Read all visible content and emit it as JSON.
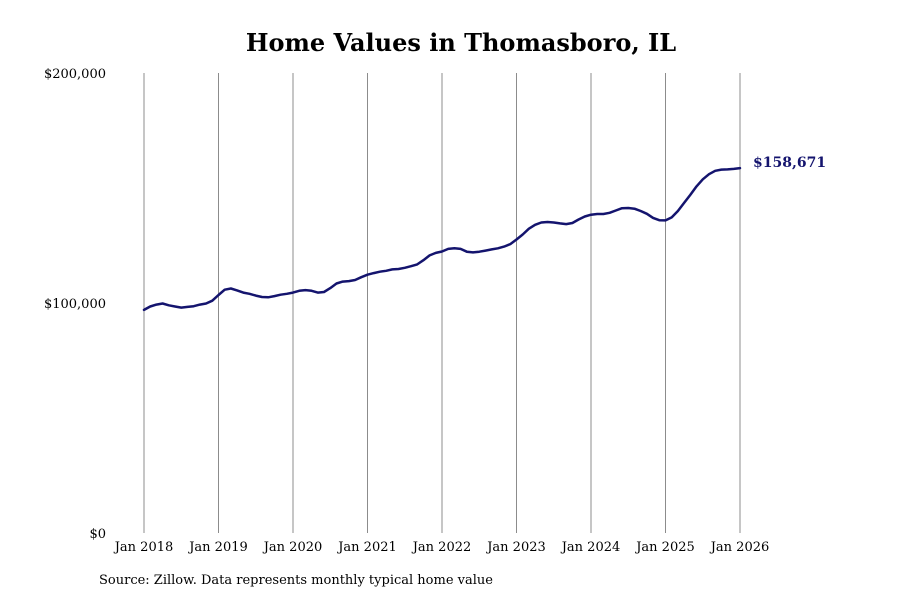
{
  "chart_data": {
    "type": "line",
    "title": "Home Values in Thomasboro, IL",
    "xlabel": "",
    "ylabel": "",
    "ylim": [
      0,
      200000
    ],
    "y_ticks": [
      {
        "value": 0,
        "label": "$0"
      },
      {
        "value": 100000,
        "label": "$100,000"
      },
      {
        "value": 200000,
        "label": "$200,000"
      }
    ],
    "x_ticks": [
      {
        "date": "2018-01",
        "label": "Jan 2018"
      },
      {
        "date": "2019-01",
        "label": "Jan 2019"
      },
      {
        "date": "2020-01",
        "label": "Jan 2020"
      },
      {
        "date": "2021-01",
        "label": "Jan 2021"
      },
      {
        "date": "2022-01",
        "label": "Jan 2022"
      },
      {
        "date": "2023-01",
        "label": "Jan 2023"
      },
      {
        "date": "2024-01",
        "label": "Jan 2024"
      },
      {
        "date": "2025-01",
        "label": "Jan 2025"
      },
      {
        "date": "2026-01",
        "label": "Jan 2026"
      }
    ],
    "grid": "vertical",
    "line_color": "#14146e",
    "series": [
      {
        "name": "",
        "points": [
          [
            "2018-01",
            97000
          ],
          [
            "2018-02",
            98500
          ],
          [
            "2018-03",
            99300
          ],
          [
            "2018-04",
            99800
          ],
          [
            "2018-05",
            99000
          ],
          [
            "2018-06",
            98500
          ],
          [
            "2018-07",
            98000
          ],
          [
            "2018-08",
            98300
          ],
          [
            "2018-09",
            98600
          ],
          [
            "2018-10",
            99300
          ],
          [
            "2018-11",
            99800
          ],
          [
            "2018-12",
            101000
          ],
          [
            "2019-01",
            103500
          ],
          [
            "2019-02",
            105800
          ],
          [
            "2019-03",
            106300
          ],
          [
            "2019-04",
            105500
          ],
          [
            "2019-05",
            104500
          ],
          [
            "2019-06",
            104000
          ],
          [
            "2019-07",
            103200
          ],
          [
            "2019-08",
            102600
          ],
          [
            "2019-09",
            102500
          ],
          [
            "2019-10",
            103000
          ],
          [
            "2019-11",
            103600
          ],
          [
            "2019-12",
            104000
          ],
          [
            "2020-01",
            104500
          ],
          [
            "2020-02",
            105300
          ],
          [
            "2020-03",
            105600
          ],
          [
            "2020-04",
            105300
          ],
          [
            "2020-05",
            104500
          ],
          [
            "2020-06",
            104800
          ],
          [
            "2020-07",
            106500
          ],
          [
            "2020-08",
            108500
          ],
          [
            "2020-09",
            109300
          ],
          [
            "2020-10",
            109500
          ],
          [
            "2020-11",
            110000
          ],
          [
            "2020-12",
            111200
          ],
          [
            "2021-01",
            112300
          ],
          [
            "2021-02",
            113000
          ],
          [
            "2021-03",
            113600
          ],
          [
            "2021-04",
            114000
          ],
          [
            "2021-05",
            114600
          ],
          [
            "2021-06",
            114800
          ],
          [
            "2021-07",
            115300
          ],
          [
            "2021-08",
            116000
          ],
          [
            "2021-09",
            116800
          ],
          [
            "2021-10",
            118600
          ],
          [
            "2021-11",
            120700
          ],
          [
            "2021-12",
            121800
          ],
          [
            "2022-01",
            122400
          ],
          [
            "2022-02",
            123500
          ],
          [
            "2022-03",
            123800
          ],
          [
            "2022-04",
            123500
          ],
          [
            "2022-05",
            122300
          ],
          [
            "2022-06",
            122000
          ],
          [
            "2022-07",
            122300
          ],
          [
            "2022-08",
            122800
          ],
          [
            "2022-09",
            123300
          ],
          [
            "2022-10",
            123800
          ],
          [
            "2022-11",
            124500
          ],
          [
            "2022-12",
            125600
          ],
          [
            "2023-01",
            127600
          ],
          [
            "2023-02",
            129800
          ],
          [
            "2023-03",
            132300
          ],
          [
            "2023-04",
            134000
          ],
          [
            "2023-05",
            135000
          ],
          [
            "2023-06",
            135200
          ],
          [
            "2023-07",
            135000
          ],
          [
            "2023-08",
            134600
          ],
          [
            "2023-09",
            134300
          ],
          [
            "2023-10",
            134800
          ],
          [
            "2023-11",
            136300
          ],
          [
            "2023-12",
            137600
          ],
          [
            "2024-01",
            138400
          ],
          [
            "2024-02",
            138700
          ],
          [
            "2024-03",
            138700
          ],
          [
            "2024-04",
            139200
          ],
          [
            "2024-05",
            140200
          ],
          [
            "2024-06",
            141200
          ],
          [
            "2024-07",
            141300
          ],
          [
            "2024-08",
            141000
          ],
          [
            "2024-09",
            140000
          ],
          [
            "2024-10",
            138800
          ],
          [
            "2024-11",
            137000
          ],
          [
            "2024-12",
            136000
          ],
          [
            "2025-01",
            135900
          ],
          [
            "2025-02",
            137200
          ],
          [
            "2025-03",
            140000
          ],
          [
            "2025-04",
            143500
          ],
          [
            "2025-05",
            147000
          ],
          [
            "2025-06",
            150700
          ],
          [
            "2025-07",
            153800
          ],
          [
            "2025-08",
            156000
          ],
          [
            "2025-09",
            157500
          ],
          [
            "2025-10",
            158000
          ],
          [
            "2025-11",
            158100
          ],
          [
            "2025-12",
            158300
          ],
          [
            "2026-01",
            158671
          ]
        ]
      }
    ],
    "end_label": "$158,671",
    "end_label_color": "#14146e"
  },
  "source_text": "Source: Zillow. Data represents monthly typical home value"
}
